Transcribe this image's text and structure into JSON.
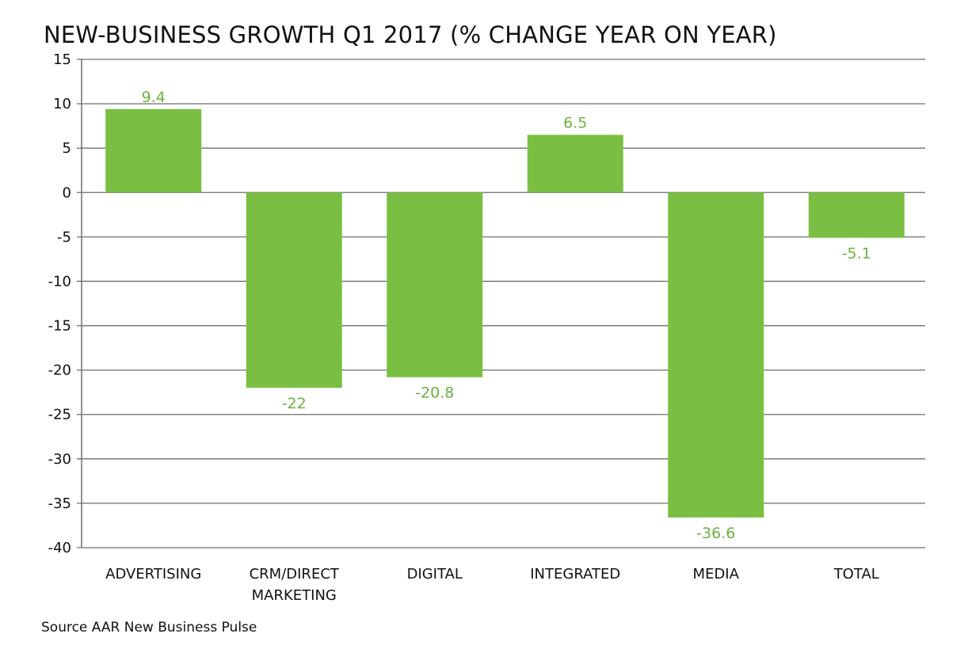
{
  "chart_data": {
    "type": "bar",
    "title": "NEW-BUSINESS GROWTH Q1 2017 (% CHANGE YEAR ON YEAR)",
    "categories": [
      "ADVERTISING",
      "CRM/DIRECT MARKETING",
      "DIGITAL",
      "INTEGRATED",
      "MEDIA",
      "TOTAL"
    ],
    "category_lines": [
      [
        "ADVERTISING"
      ],
      [
        "CRM/DIRECT",
        "MARKETING"
      ],
      [
        "DIGITAL"
      ],
      [
        "INTEGRATED"
      ],
      [
        "MEDIA"
      ],
      [
        "TOTAL"
      ]
    ],
    "values": [
      9.4,
      -22,
      -20.8,
      6.5,
      -36.6,
      -5.1
    ],
    "data_labels": [
      "9.4",
      "-22",
      "-20.8",
      "6.5",
      "-36.6",
      "-5.1"
    ],
    "xlabel": "",
    "ylabel": "",
    "ylim": [
      -40,
      15
    ],
    "yticks": [
      15,
      10,
      5,
      0,
      -5,
      -10,
      -15,
      -20,
      -25,
      -30,
      -35,
      -40
    ],
    "grid": true,
    "legend": "none",
    "colors": {
      "bar": "#7abf43",
      "label": "#6cb33f",
      "grid": "#6d6e71"
    }
  },
  "source": "Source AAR New Business Pulse"
}
